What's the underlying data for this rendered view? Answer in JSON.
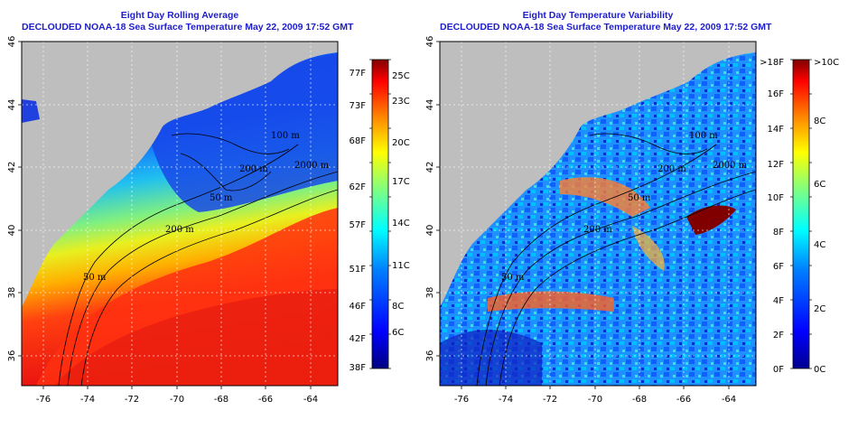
{
  "left_panel": {
    "title1": "Eight Day Rolling Average",
    "title2": "DECLOUDED NOAA-18 Sea Surface Temperature May 22, 2009 17:52 GMT",
    "colorbar_left_labels": [
      "77F",
      "73F",
      "68F",
      "62F",
      "57F",
      "51F",
      "46F",
      "42F",
      "38F"
    ],
    "colorbar_right_labels": [
      "25C",
      "23C",
      "20C",
      "17C",
      "14C",
      "11C",
      "8C",
      "6C"
    ],
    "contour_labels": [
      "100 m",
      "200 m",
      "2000 m",
      "50 m",
      "200 m",
      "50 m"
    ]
  },
  "right_panel": {
    "title1": "Eight Day Temperature Variability",
    "title2": "DECLOUDED NOAA-18 Sea Surface Temperature May 22, 2009 17:52 GMT",
    "colorbar_left_labels": [
      ">18F",
      "16F",
      "14F",
      "12F",
      "10F",
      "8F",
      "6F",
      "4F",
      "2F",
      "0F"
    ],
    "colorbar_right_labels": [
      ">10C",
      "8C",
      "6C",
      "4C",
      "2C",
      "0C"
    ],
    "contour_labels": [
      "100 m",
      "200 m",
      "2000 m",
      "50 m",
      "200 m",
      "50 m"
    ]
  },
  "lat_ticks": [
    "46",
    "44",
    "42",
    "40",
    "38",
    "36"
  ],
  "lon_ticks": [
    "-76",
    "-74",
    "-72",
    "-70",
    "-68",
    "-66",
    "-64"
  ],
  "colors": {
    "land": "#bebebe",
    "title": "#1d1dcc",
    "sst_scale": [
      "#000080",
      "#0000ff",
      "#0080ff",
      "#00ffff",
      "#80ff80",
      "#ffff00",
      "#ff8000",
      "#ff0000",
      "#800000"
    ],
    "var_scale": [
      "#00008f",
      "#0000ff",
      "#0080ff",
      "#00ffff",
      "#80ff80",
      "#ffff00",
      "#ff8000",
      "#ff0000",
      "#800000"
    ]
  }
}
